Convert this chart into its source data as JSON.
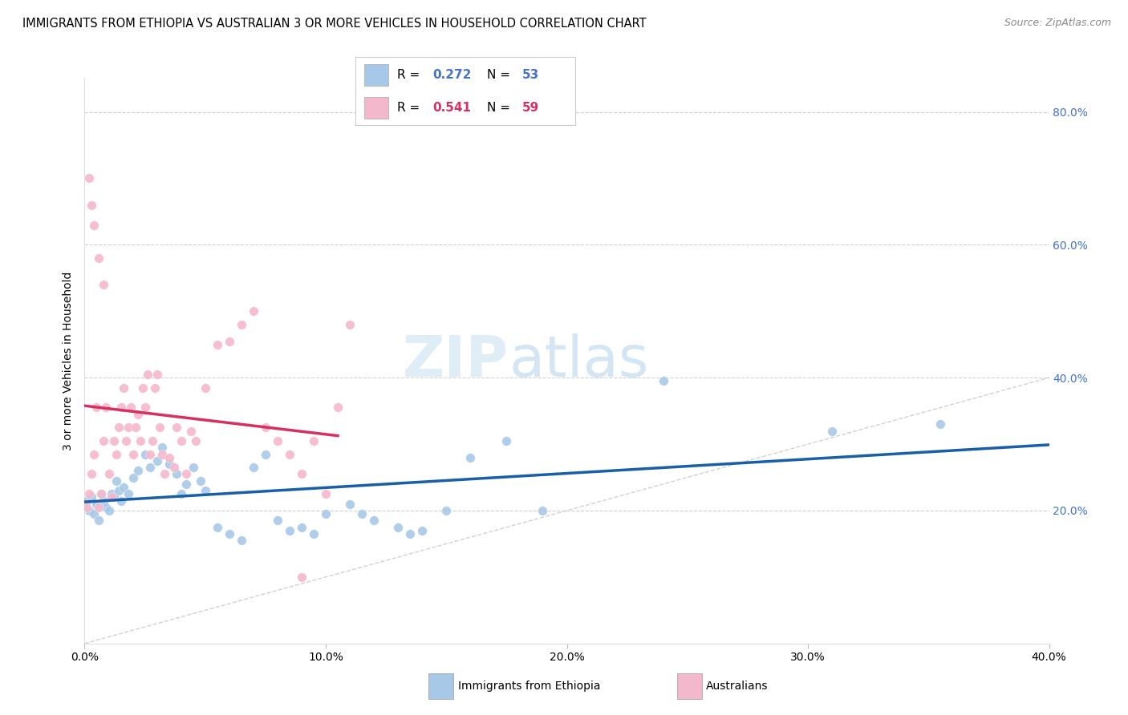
{
  "title": "IMMIGRANTS FROM ETHIOPIA VS AUSTRALIAN 3 OR MORE VEHICLES IN HOUSEHOLD CORRELATION CHART",
  "source": "Source: ZipAtlas.com",
  "ylabel": "3 or more Vehicles in Household",
  "background_color": "#ffffff",
  "grid_color": "#d0d0d0",
  "blue_color": "#a8c8e8",
  "pink_color": "#f4b8cc",
  "blue_line_color": "#1a5ea8",
  "pink_line_color": "#d63060",
  "diag_line_color": "#cccccc",
  "right_tick_color": "#4472c4",
  "blue_R": 0.272,
  "blue_N": 53,
  "pink_R": 0.541,
  "pink_N": 59,
  "xlim": [
    0.0,
    0.4
  ],
  "ylim": [
    0.0,
    0.85
  ],
  "xtick_vals": [
    0.0,
    0.1,
    0.2,
    0.3,
    0.4
  ],
  "xtick_labels": [
    "0.0%",
    "10.0%",
    "20.0%",
    "30.0%",
    "40.0%"
  ],
  "ytick_vals": [
    0.2,
    0.4,
    0.6,
    0.8
  ],
  "ytick_labels": [
    "20.0%",
    "40.0%",
    "60.0%",
    "80.0%"
  ],
  "legend_blue_label": "Immigrants from Ethiopia",
  "legend_pink_label": "Australians",
  "watermark_zip": "ZIP",
  "watermark_atlas": "atlas",
  "blue_x": [
    0.001,
    0.002,
    0.003,
    0.004,
    0.005,
    0.006,
    0.007,
    0.008,
    0.009,
    0.01,
    0.011,
    0.012,
    0.013,
    0.014,
    0.015,
    0.016,
    0.018,
    0.02,
    0.022,
    0.025,
    0.027,
    0.03,
    0.032,
    0.035,
    0.038,
    0.04,
    0.042,
    0.045,
    0.048,
    0.05,
    0.055,
    0.06,
    0.065,
    0.07,
    0.075,
    0.08,
    0.085,
    0.09,
    0.095,
    0.1,
    0.11,
    0.115,
    0.12,
    0.13,
    0.135,
    0.14,
    0.15,
    0.16,
    0.175,
    0.19,
    0.24,
    0.31,
    0.355
  ],
  "blue_y": [
    0.215,
    0.2,
    0.22,
    0.195,
    0.21,
    0.185,
    0.225,
    0.215,
    0.205,
    0.2,
    0.225,
    0.22,
    0.245,
    0.23,
    0.215,
    0.235,
    0.225,
    0.25,
    0.26,
    0.285,
    0.265,
    0.275,
    0.295,
    0.27,
    0.255,
    0.225,
    0.24,
    0.265,
    0.245,
    0.23,
    0.175,
    0.165,
    0.155,
    0.265,
    0.285,
    0.185,
    0.17,
    0.175,
    0.165,
    0.195,
    0.21,
    0.195,
    0.185,
    0.175,
    0.165,
    0.17,
    0.2,
    0.28,
    0.305,
    0.2,
    0.395,
    0.32,
    0.33
  ],
  "pink_x": [
    0.001,
    0.002,
    0.003,
    0.004,
    0.005,
    0.006,
    0.007,
    0.008,
    0.009,
    0.01,
    0.011,
    0.012,
    0.013,
    0.014,
    0.015,
    0.016,
    0.017,
    0.018,
    0.019,
    0.02,
    0.021,
    0.022,
    0.023,
    0.024,
    0.025,
    0.026,
    0.027,
    0.028,
    0.029,
    0.03,
    0.031,
    0.032,
    0.033,
    0.035,
    0.037,
    0.038,
    0.04,
    0.042,
    0.044,
    0.046,
    0.05,
    0.055,
    0.06,
    0.065,
    0.07,
    0.075,
    0.08,
    0.085,
    0.09,
    0.095,
    0.1,
    0.105,
    0.11,
    0.002,
    0.003,
    0.004,
    0.006,
    0.008,
    0.09
  ],
  "pink_y": [
    0.205,
    0.225,
    0.255,
    0.285,
    0.355,
    0.205,
    0.225,
    0.305,
    0.355,
    0.255,
    0.22,
    0.305,
    0.285,
    0.325,
    0.355,
    0.385,
    0.305,
    0.325,
    0.355,
    0.285,
    0.325,
    0.345,
    0.305,
    0.385,
    0.355,
    0.405,
    0.285,
    0.305,
    0.385,
    0.405,
    0.325,
    0.285,
    0.255,
    0.28,
    0.265,
    0.325,
    0.305,
    0.255,
    0.32,
    0.305,
    0.385,
    0.45,
    0.455,
    0.48,
    0.5,
    0.325,
    0.305,
    0.285,
    0.255,
    0.305,
    0.225,
    0.355,
    0.48,
    0.7,
    0.66,
    0.63,
    0.58,
    0.54,
    0.1
  ]
}
